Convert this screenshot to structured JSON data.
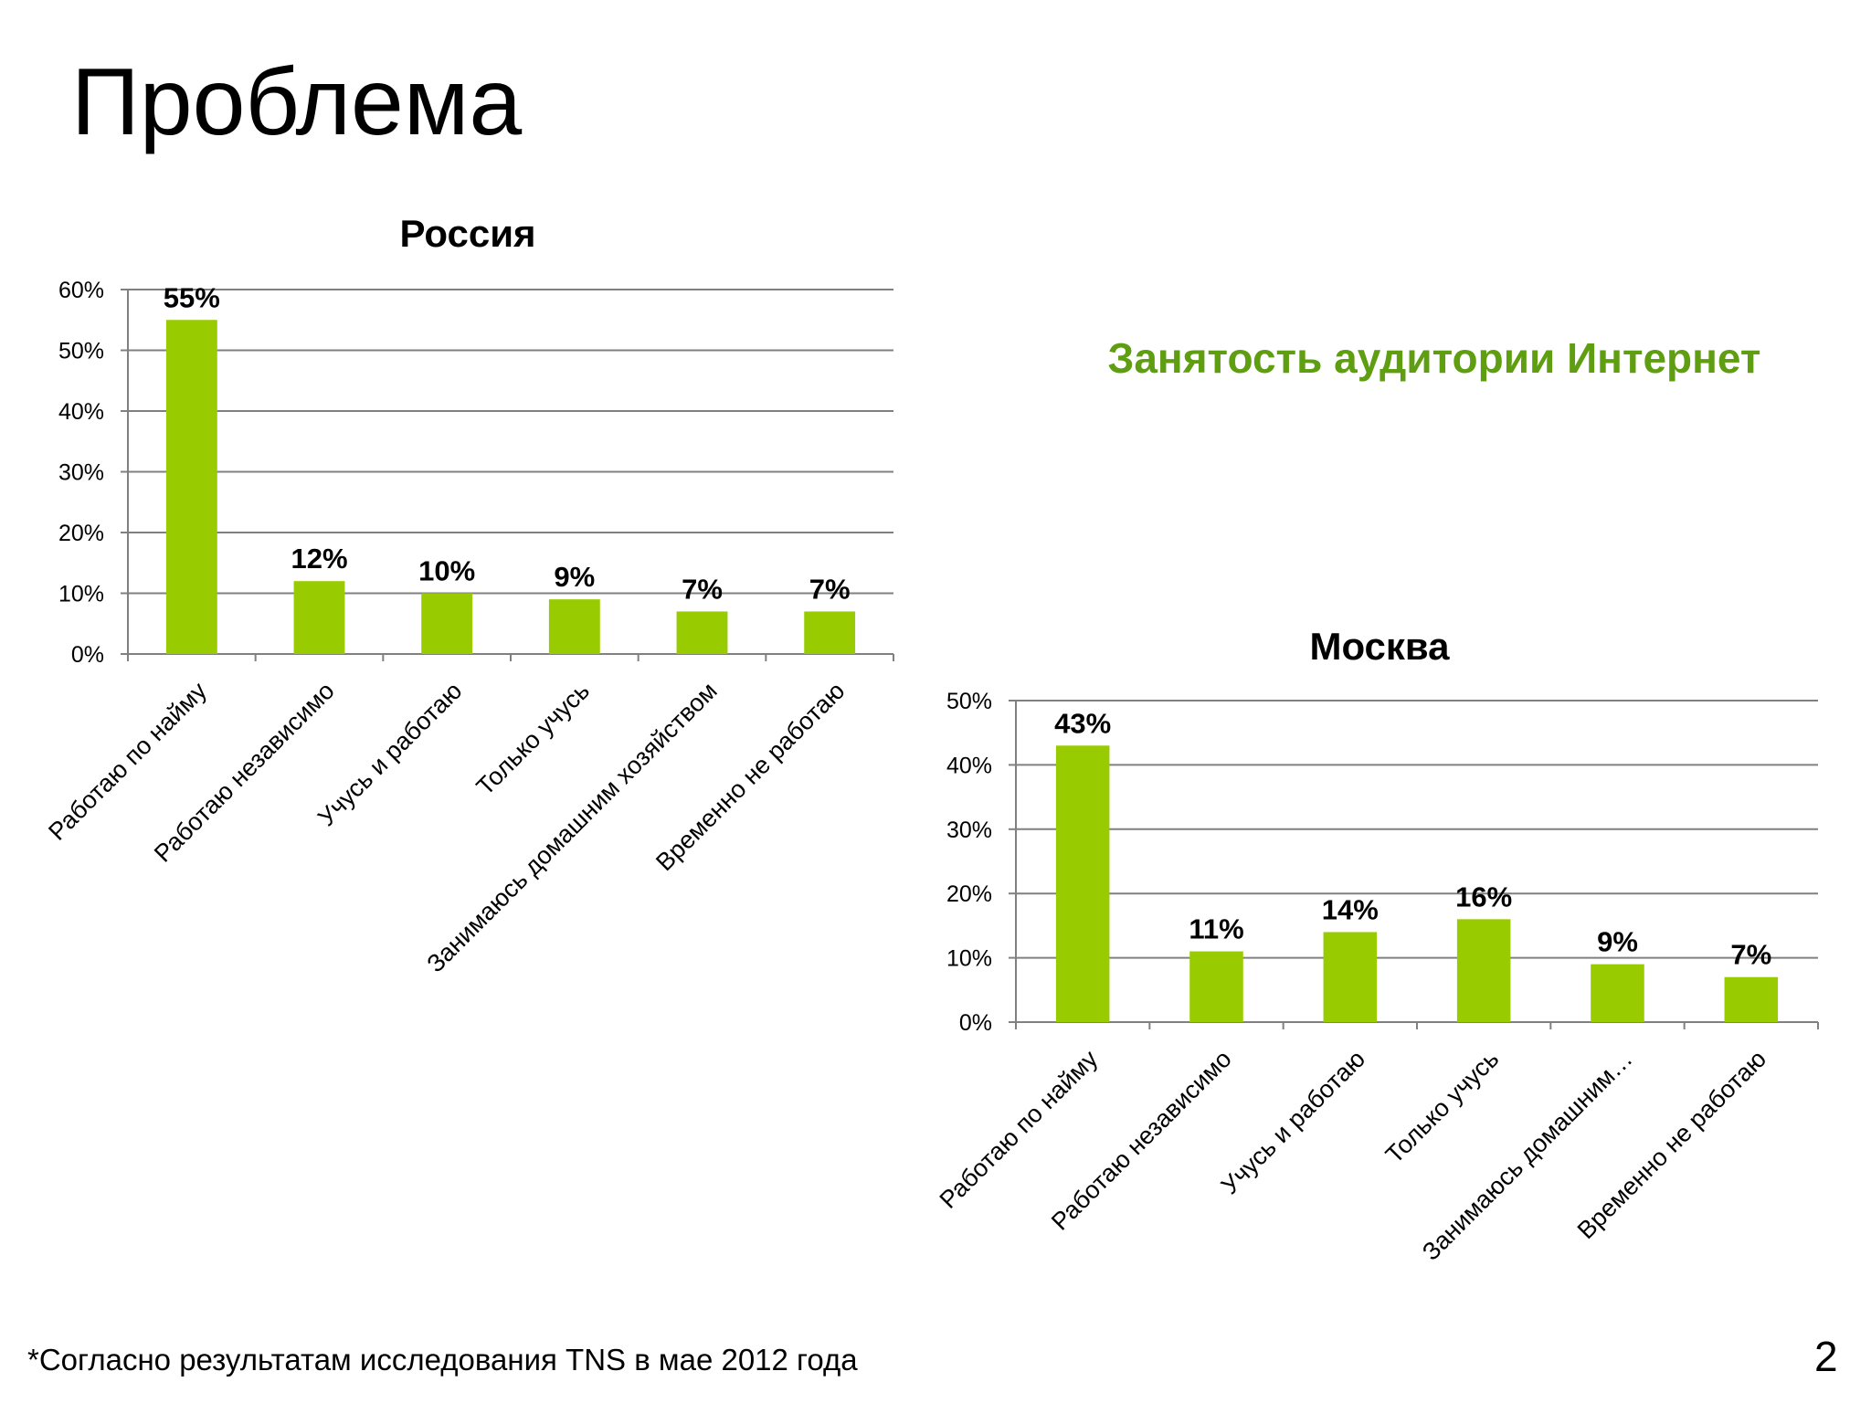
{
  "page": {
    "title": "Проблема",
    "subtitle": "Занятость аудитории Интернет",
    "footnote": "*Согласно результатам исследования TNS в мае 2012 года",
    "page_number": "2"
  },
  "colors": {
    "bar": "#99cc00",
    "accent": "#5e9e10",
    "grid": "#808080"
  },
  "chart_data": [
    {
      "type": "bar",
      "title": "Россия",
      "categories": [
        "Работаю по найму",
        "Работаю независимо",
        "Учусь и работаю",
        "Только учусь",
        "Занимаюсь домашним хозяйством",
        "Временно не работаю"
      ],
      "values": [
        55,
        12,
        10,
        9,
        7,
        7
      ],
      "data_labels": [
        "55%",
        "12%",
        "10%",
        "9%",
        "7%",
        "7%"
      ],
      "yticks": [
        0,
        10,
        20,
        30,
        40,
        50,
        60
      ],
      "ytick_labels": [
        "0%",
        "10%",
        "20%",
        "30%",
        "40%",
        "50%",
        "60%"
      ],
      "ylim": [
        0,
        60
      ],
      "grid": true,
      "legend": "none"
    },
    {
      "type": "bar",
      "title": "Москва",
      "categories": [
        "Работаю по найму",
        "Работаю независимо",
        "Учусь и работаю",
        "Только учусь",
        "Занимаюсь домашним…",
        "Временно не работаю"
      ],
      "values": [
        43,
        11,
        14,
        16,
        9,
        7
      ],
      "data_labels": [
        "43%",
        "11%",
        "14%",
        "16%",
        "9%",
        "7%"
      ],
      "yticks": [
        0,
        10,
        20,
        30,
        40,
        50
      ],
      "ytick_labels": [
        "0%",
        "10%",
        "20%",
        "30%",
        "40%",
        "50%"
      ],
      "ylim": [
        0,
        50
      ],
      "grid": true,
      "legend": "none"
    }
  ]
}
